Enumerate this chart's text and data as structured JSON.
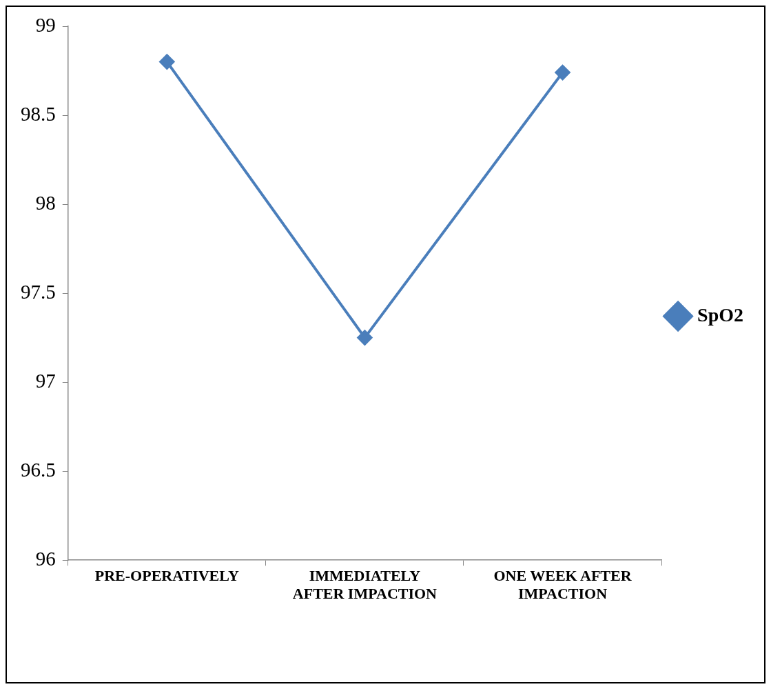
{
  "chart_data": {
    "type": "line",
    "categories": [
      "PRE-OPERATIVELY",
      "IMMEDIATELY AFTER IMPACTION",
      "ONE WEEK AFTER IMPACTION"
    ],
    "series": [
      {
        "name": "SpO2",
        "color": "#4a7ebb",
        "values": [
          98.8,
          97.25,
          98.74
        ]
      }
    ],
    "ylim": [
      96,
      99
    ],
    "yticks": [
      96,
      96.5,
      97,
      97.5,
      98,
      98.5,
      99
    ],
    "grid": false,
    "legend": "right",
    "marker": "diamond",
    "line_style": "solid"
  }
}
